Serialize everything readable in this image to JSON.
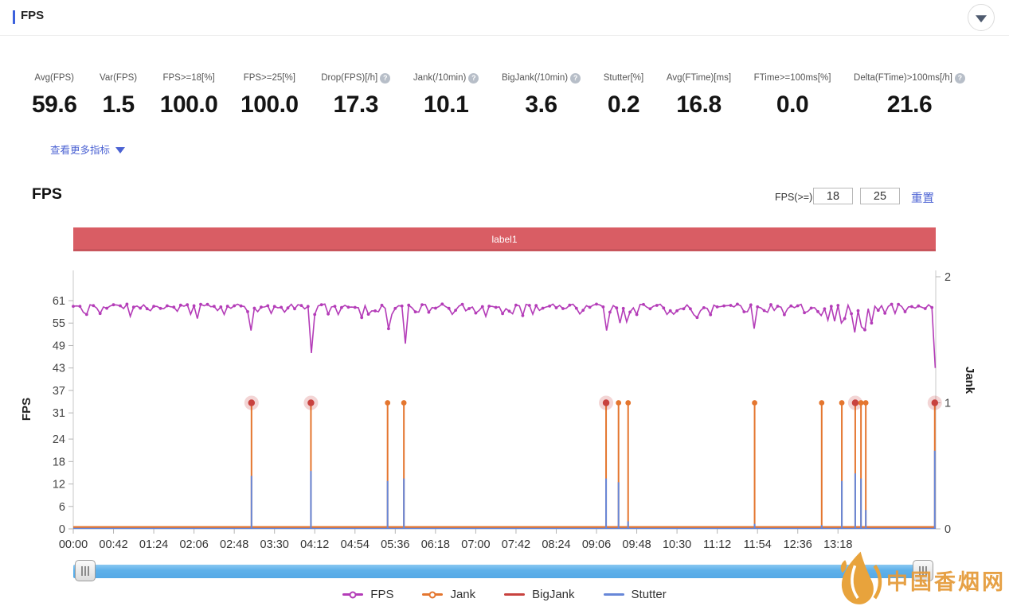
{
  "header": {
    "title": "FPS"
  },
  "stats": {
    "items": [
      {
        "label": "Avg(FPS)",
        "value": "59.6",
        "help": false
      },
      {
        "label": "Var(FPS)",
        "value": "1.5",
        "help": false
      },
      {
        "label": "FPS>=18[%]",
        "value": "100.0",
        "help": false
      },
      {
        "label": "FPS>=25[%]",
        "value": "100.0",
        "help": false
      },
      {
        "label": "Drop(FPS)[/h]",
        "value": "17.3",
        "help": true
      },
      {
        "label": "Jank(/10min)",
        "value": "10.1",
        "help": true
      },
      {
        "label": "BigJank(/10min)",
        "value": "3.6",
        "help": true
      },
      {
        "label": "Stutter[%]",
        "value": "0.2",
        "help": false
      },
      {
        "label": "Avg(FTime)[ms]",
        "value": "16.8",
        "help": false
      },
      {
        "label": "FTime>=100ms[%]",
        "value": "0.0",
        "help": false
      },
      {
        "label": "Delta(FTime)>100ms[/h]",
        "value": "21.6",
        "help": true
      }
    ],
    "more_label": "查看更多指标"
  },
  "chart_section": {
    "title": "FPS",
    "filter_label": "FPS(>=)",
    "filter_inputs": [
      "18",
      "25"
    ],
    "reset_label": "重置",
    "banner": {
      "text": "label1",
      "color": "#d95d64"
    }
  },
  "chart_data": {
    "type": "line",
    "title": "FPS / Jank / BigJank / Stutter over time",
    "x_axis": {
      "unit": "mm:ss",
      "range_s": [
        0,
        900
      ],
      "tick_interval_s": 42,
      "ticks": [
        "00:00",
        "00:42",
        "01:24",
        "02:06",
        "02:48",
        "03:30",
        "04:12",
        "04:54",
        "05:36",
        "06:18",
        "07:00",
        "07:42",
        "08:24",
        "09:06",
        "09:48",
        "10:30",
        "11:12",
        "11:54",
        "12:36",
        "13:18"
      ]
    },
    "y_left": {
      "label": "FPS",
      "range": [
        0,
        61
      ],
      "ticks": [
        61,
        55,
        49,
        43,
        37,
        31,
        24,
        18,
        12,
        6,
        0
      ]
    },
    "y_right": {
      "label": "Jank",
      "range": [
        0,
        2
      ],
      "ticks": [
        2,
        1,
        0
      ]
    },
    "grid": false,
    "legend_position": "bottom-center",
    "colors": {
      "fps": "#b43cb8",
      "jank": "#e4762f",
      "bigjank": "#c8423f",
      "stutter": "#6787d8",
      "bigjank_halo": "rgba(201,66,62,0.22)"
    },
    "fps_series": {
      "name": "FPS",
      "baseline": 59.3,
      "noise_low": 57.2,
      "noise_high": 60.1,
      "sample_step_s": 3.5,
      "noise_seed": 11,
      "dips": [
        {
          "t": 14,
          "fps": 57.3
        },
        {
          "t": 60,
          "fps": 56.8
        },
        {
          "t": 131,
          "fps": 56.2
        },
        {
          "t": 186,
          "fps": 53.0
        },
        {
          "t": 248,
          "fps": 47.0
        },
        {
          "t": 300,
          "fps": 56.5
        },
        {
          "t": 328,
          "fps": 53.5
        },
        {
          "t": 345,
          "fps": 49.5
        },
        {
          "t": 430,
          "fps": 56.8
        },
        {
          "t": 470,
          "fps": 57.0
        },
        {
          "t": 556,
          "fps": 53.0
        },
        {
          "t": 569,
          "fps": 55.0
        },
        {
          "t": 579,
          "fps": 55.3
        },
        {
          "t": 620,
          "fps": 57.3
        },
        {
          "t": 650,
          "fps": 56.5
        },
        {
          "t": 711,
          "fps": 53.5
        },
        {
          "t": 781,
          "fps": 57.0
        },
        {
          "t": 788,
          "fps": 55.8
        },
        {
          "t": 795,
          "fps": 55.5
        },
        {
          "t": 802,
          "fps": 55.0
        },
        {
          "t": 806,
          "fps": 56.2
        },
        {
          "t": 816,
          "fps": 52.5
        },
        {
          "t": 822,
          "fps": 54.0
        },
        {
          "t": 827,
          "fps": 53.2
        },
        {
          "t": 833,
          "fps": 55.0
        },
        {
          "t": 899,
          "fps": 43.0
        }
      ]
    },
    "events": [
      {
        "t": 186,
        "jank": 1,
        "stutter": 0.42,
        "bigjank": true
      },
      {
        "t": 248,
        "jank": 1,
        "stutter": 0.46,
        "bigjank": true
      },
      {
        "t": 328,
        "jank": 1,
        "stutter": 0.38,
        "bigjank": false
      },
      {
        "t": 345,
        "jank": 1,
        "stutter": 0.4,
        "bigjank": false
      },
      {
        "t": 556,
        "jank": 1,
        "stutter": 0.4,
        "bigjank": true
      },
      {
        "t": 569,
        "jank": 1,
        "stutter": 0.37,
        "bigjank": false
      },
      {
        "t": 579,
        "jank": 1,
        "stutter": 0.06,
        "bigjank": false
      },
      {
        "t": 711,
        "jank": 1,
        "stutter": 0.04,
        "bigjank": false
      },
      {
        "t": 781,
        "jank": 1,
        "stutter": 0.03,
        "bigjank": false
      },
      {
        "t": 802,
        "jank": 1,
        "stutter": 0.38,
        "bigjank": false
      },
      {
        "t": 816,
        "jank": 1,
        "stutter": 0.44,
        "bigjank": true
      },
      {
        "t": 822,
        "jank": 1,
        "stutter": 0.4,
        "bigjank": false
      },
      {
        "t": 827,
        "jank": 1,
        "stutter": 0.15,
        "bigjank": false
      },
      {
        "t": 899,
        "jank": 1,
        "stutter": 0.62,
        "bigjank": true
      }
    ],
    "legend": [
      {
        "name": "FPS",
        "color": "#b43cb8",
        "marker": "ring"
      },
      {
        "name": "Jank",
        "color": "#e4762f",
        "marker": "ring"
      },
      {
        "name": "BigJank",
        "color": "#c8423f",
        "marker": "line"
      },
      {
        "name": "Stutter",
        "color": "#6787d8",
        "marker": "line"
      }
    ]
  },
  "watermark": {
    "text": "中国香烟网",
    "color": "#e59c3d"
  }
}
